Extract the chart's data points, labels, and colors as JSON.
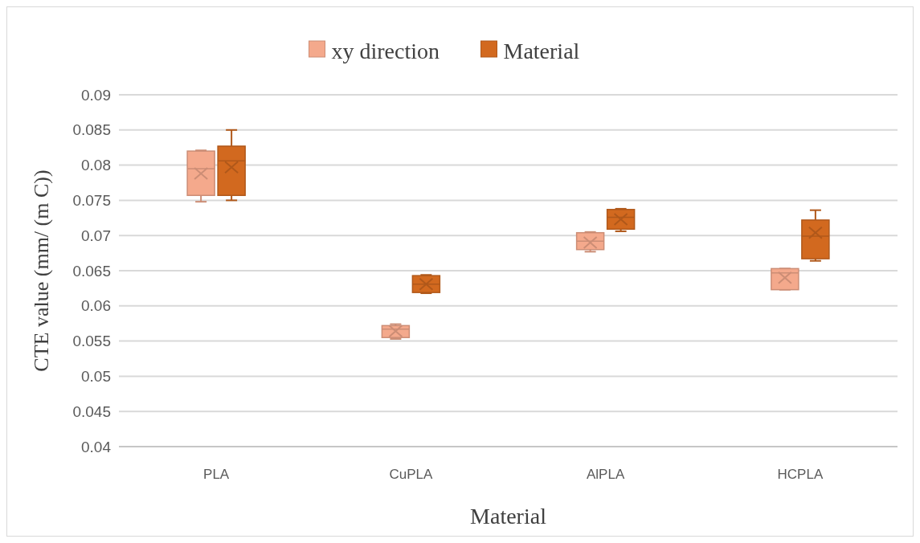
{
  "chart_data": {
    "type": "box",
    "xlabel": "Material",
    "ylabel": "CTE value (mm/ (m  C))",
    "categories": [
      "PLA",
      "CuPLA",
      "AlPLA",
      "HCPLA"
    ],
    "series": [
      {
        "name": "xy direction",
        "color": "#f4a98c",
        "boxes": [
          {
            "low": 0.0748,
            "q1": 0.0757,
            "median": 0.0795,
            "q3": 0.082,
            "high": 0.0821,
            "mean": 0.0788
          },
          {
            "low": 0.0553,
            "q1": 0.0555,
            "median": 0.0567,
            "q3": 0.0572,
            "high": 0.0574,
            "mean": 0.0564
          },
          {
            "low": 0.0677,
            "q1": 0.068,
            "median": 0.0692,
            "q3": 0.0704,
            "high": 0.0705,
            "mean": 0.069
          },
          {
            "low": 0.0623,
            "q1": 0.0623,
            "median": 0.0647,
            "q3": 0.0653,
            "high": 0.0653,
            "mean": 0.064
          }
        ]
      },
      {
        "name": "Material",
        "color": "#d2691f",
        "boxes": [
          {
            "low": 0.075,
            "q1": 0.0757,
            "median": 0.0806,
            "q3": 0.0827,
            "high": 0.085,
            "mean": 0.0797
          },
          {
            "low": 0.0618,
            "q1": 0.0619,
            "median": 0.0631,
            "q3": 0.0643,
            "high": 0.0644,
            "mean": 0.0631
          },
          {
            "low": 0.0706,
            "q1": 0.0709,
            "median": 0.0726,
            "q3": 0.0737,
            "high": 0.0738,
            "mean": 0.0723
          },
          {
            "low": 0.0664,
            "q1": 0.0667,
            "median": 0.0699,
            "q3": 0.0722,
            "high": 0.0736,
            "mean": 0.0704
          }
        ]
      }
    ],
    "ylim": [
      0.04,
      0.09
    ],
    "yticks": [
      0.04,
      0.045,
      0.05,
      0.055,
      0.06,
      0.065,
      0.07,
      0.075,
      0.08,
      0.085,
      0.09
    ],
    "grid": "y",
    "legend": "top",
    "marker": "cross"
  }
}
